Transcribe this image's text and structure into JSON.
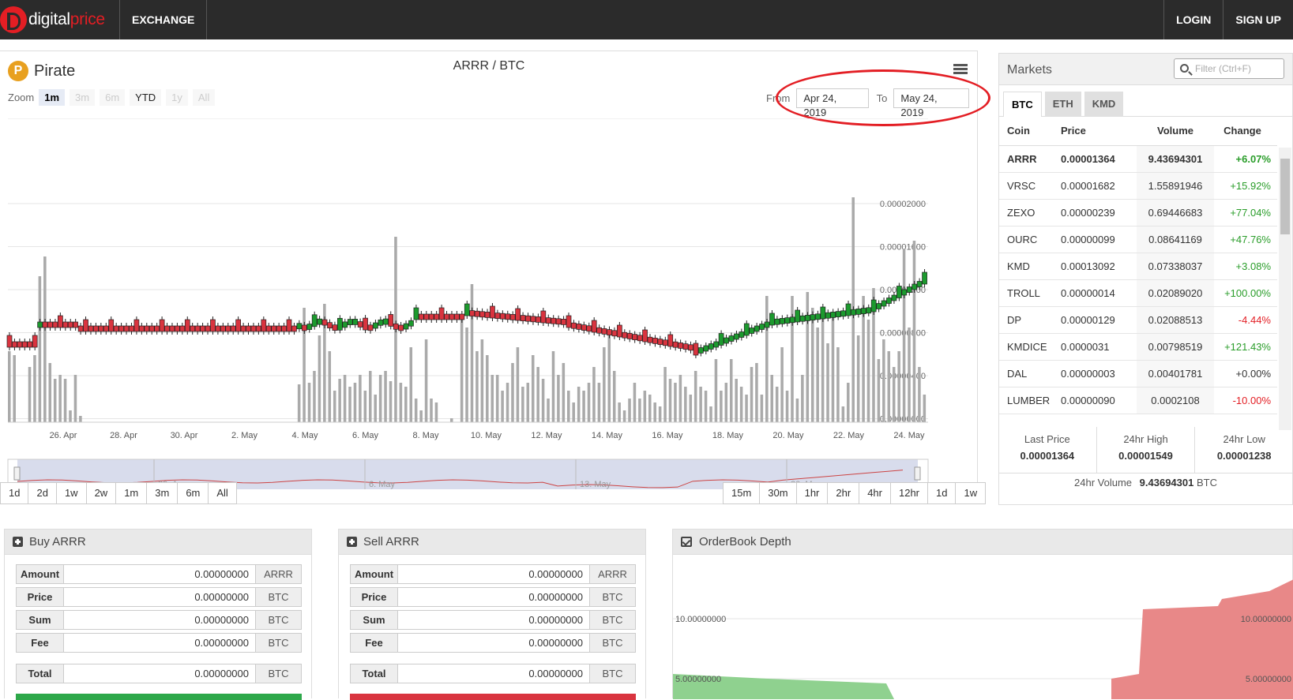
{
  "nav": {
    "brand_a": "digital",
    "brand_b": "price",
    "exchange": "EXCHANGE",
    "login": "LOGIN",
    "signup": "SIGN UP"
  },
  "chart": {
    "coin_icon_letter": "P",
    "coin_name": "Pirate",
    "pair": "ARRR / BTC",
    "zoom_label": "Zoom",
    "zoom_buttons": [
      "1m",
      "3m",
      "6m",
      "YTD",
      "1y",
      "All"
    ],
    "from_label": "From",
    "from_value": "Apr 24, 2019",
    "to_label": "To",
    "to_value": "May 24, 2019",
    "range_buttons": [
      "1d",
      "2d",
      "1w",
      "2w",
      "1m",
      "3m",
      "6m",
      "All"
    ],
    "interval_buttons": [
      "15m",
      "30m",
      "1hr",
      "2hr",
      "4hr",
      "12hr",
      "1d",
      "1w"
    ],
    "navigator_labels": [
      "29. Apr",
      "6. May",
      "13. May",
      "20. May"
    ]
  },
  "chart_data": {
    "type": "candlestick",
    "x_ticks": [
      "26. Apr",
      "28. Apr",
      "30. Apr",
      "2. May",
      "4. May",
      "6. May",
      "8. May",
      "10. May",
      "12. May",
      "14. May",
      "16. May",
      "18. May",
      "20. May",
      "22. May",
      "24. May"
    ],
    "y_ticks": [
      "0.00002000",
      "0.00001600",
      "0.00001200",
      "0.00000800",
      "0.00000400",
      "0.00000000"
    ],
    "ylim": [
      0,
      2e-05
    ]
  },
  "markets": {
    "title": "Markets",
    "filter_placeholder": "Filter (Ctrl+F)",
    "tabs": [
      "BTC",
      "ETH",
      "KMD"
    ],
    "columns": [
      "Coin",
      "Price",
      "Volume",
      "Change"
    ],
    "rows": [
      {
        "coin": "ARRR",
        "price": "0.00001364",
        "volume": "9.43694301",
        "change": "+6.07%",
        "dir": "pos"
      },
      {
        "coin": "VRSC",
        "price": "0.00001682",
        "volume": "1.55891946",
        "change": "+15.92%",
        "dir": "pos"
      },
      {
        "coin": "ZEXO",
        "price": "0.00000239",
        "volume": "0.69446683",
        "change": "+77.04%",
        "dir": "pos"
      },
      {
        "coin": "OURC",
        "price": "0.00000099",
        "volume": "0.08641169",
        "change": "+47.76%",
        "dir": "pos"
      },
      {
        "coin": "KMD",
        "price": "0.00013092",
        "volume": "0.07338037",
        "change": "+3.08%",
        "dir": "pos"
      },
      {
        "coin": "TROLL",
        "price": "0.00000014",
        "volume": "0.02089020",
        "change": "+100.00%",
        "dir": "pos"
      },
      {
        "coin": "DP",
        "price": "0.00000129",
        "volume": "0.02088513",
        "change": "-4.44%",
        "dir": "neg"
      },
      {
        "coin": "KMDICE",
        "price": "0.0000031",
        "volume": "0.00798519",
        "change": "+121.43%",
        "dir": "pos"
      },
      {
        "coin": "DAL",
        "price": "0.00000003",
        "volume": "0.00401781",
        "change": "+0.00%",
        "dir": "neu"
      },
      {
        "coin": "LUMBER",
        "price": "0.00000090",
        "volume": "0.0002108",
        "change": "-10.00%",
        "dir": "neg"
      }
    ],
    "last_price_label": "Last Price",
    "last_price": "0.00001364",
    "high_label": "24hr High",
    "high": "0.00001549",
    "low_label": "24hr Low",
    "low": "0.00001238",
    "volume_label": "24hr Volume",
    "volume": "9.43694301",
    "volume_unit": "BTC"
  },
  "buy": {
    "title": "Buy ARRR",
    "rows": [
      {
        "label": "Amount",
        "value": "0.00000000",
        "unit": "ARRR"
      },
      {
        "label": "Price",
        "value": "0.00000000",
        "unit": "BTC"
      },
      {
        "label": "Sum",
        "value": "0.00000000",
        "unit": "BTC"
      },
      {
        "label": "Fee",
        "value": "0.00000000",
        "unit": "BTC"
      }
    ],
    "total": {
      "label": "Total",
      "value": "0.00000000",
      "unit": "BTC"
    },
    "color": "#2ea84a"
  },
  "sell": {
    "title": "Sell ARRR",
    "rows": [
      {
        "label": "Amount",
        "value": "0.00000000",
        "unit": "ARRR"
      },
      {
        "label": "Price",
        "value": "0.00000000",
        "unit": "BTC"
      },
      {
        "label": "Sum",
        "value": "0.00000000",
        "unit": "BTC"
      },
      {
        "label": "Fee",
        "value": "0.00000000",
        "unit": "BTC"
      }
    ],
    "total": {
      "label": "Total",
      "value": "0.00000000",
      "unit": "BTC"
    },
    "color": "#d9343f"
  },
  "depth": {
    "title": "OrderBook Depth",
    "left_ticks": [
      "10.00000000",
      "5.00000000"
    ],
    "right_ticks": [
      "10.00000000",
      "5.00000000"
    ]
  }
}
